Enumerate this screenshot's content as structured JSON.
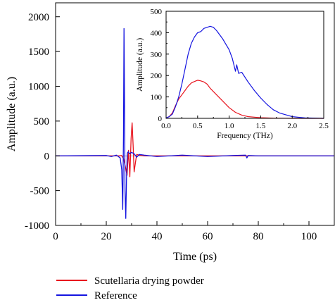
{
  "chart_data": [
    {
      "type": "line",
      "xlabel": "Time (ps)",
      "ylabel": "Amplitude (a.u.)",
      "xlim": [
        0,
        110
      ],
      "ylim": [
        -1000,
        2200
      ],
      "xticks": [
        "0",
        "20",
        "40",
        "60",
        "80",
        "100"
      ],
      "yticks": [
        "-1000",
        "-500",
        "0",
        "500",
        "1000",
        "1500",
        "2000"
      ],
      "grid": false,
      "legend_position": "bottom",
      "series": [
        {
          "name": "Scutellaria drying powder",
          "color": "#e8141e",
          "x": [
            0,
            20,
            25,
            26,
            26.8,
            27.5,
            28.2,
            28.8,
            29.3,
            29.8,
            30.2,
            30.6,
            31.0,
            31.5,
            32,
            33,
            35,
            40,
            60,
            80,
            110
          ],
          "y": [
            0,
            0,
            0,
            5,
            -40,
            -150,
            -280,
            80,
            -300,
            250,
            475,
            150,
            -230,
            -100,
            20,
            10,
            0,
            0,
            0,
            0,
            0
          ]
        },
        {
          "name": "Reference",
          "color": "#1414e0",
          "x": [
            0,
            20,
            22,
            24,
            25.5,
            26.1,
            26.5,
            26.8,
            27.0,
            27.2,
            27.4,
            27.7,
            28.0,
            28.3,
            28.7,
            29.2,
            30,
            31,
            32,
            33,
            35,
            40,
            50,
            60,
            70,
            75,
            75.5,
            76,
            80,
            90,
            110
          ],
          "y": [
            0,
            5,
            -10,
            10,
            -30,
            -200,
            -770,
            300,
            1830,
            800,
            -500,
            -900,
            -300,
            40,
            60,
            30,
            50,
            30,
            -20,
            20,
            10,
            -10,
            10,
            -10,
            5,
            10,
            -30,
            5,
            0,
            0,
            0
          ]
        }
      ]
    },
    {
      "type": "line",
      "xlabel": "Frequency (THz)",
      "ylabel": "Amplitude (a.u.)",
      "xlim": [
        0,
        2.5
      ],
      "ylim": [
        0,
        500
      ],
      "xticks": [
        "0.0",
        "0.5",
        "1.0",
        "1.5",
        "2.0",
        "2.5"
      ],
      "yticks": [
        "0",
        "100",
        "200",
        "300",
        "400",
        "500"
      ],
      "grid": false,
      "series": [
        {
          "name": "Scutellaria drying powder",
          "color": "#e8141e",
          "x": [
            0,
            0.05,
            0.1,
            0.15,
            0.2,
            0.25,
            0.3,
            0.35,
            0.4,
            0.45,
            0.5,
            0.55,
            0.6,
            0.65,
            0.7,
            0.8,
            0.9,
            1.0,
            1.1,
            1.2,
            1.3,
            1.5,
            1.7,
            2.0,
            2.5
          ],
          "y": [
            2,
            8,
            25,
            60,
            90,
            110,
            130,
            150,
            165,
            172,
            178,
            175,
            170,
            160,
            140,
            110,
            80,
            50,
            28,
            15,
            8,
            3,
            1,
            0,
            0
          ]
        },
        {
          "name": "Reference",
          "color": "#1414e0",
          "x": [
            0,
            0.05,
            0.1,
            0.15,
            0.2,
            0.25,
            0.3,
            0.35,
            0.4,
            0.45,
            0.5,
            0.55,
            0.6,
            0.65,
            0.7,
            0.75,
            0.8,
            0.9,
            1.0,
            1.05,
            1.1,
            1.12,
            1.15,
            1.2,
            1.3,
            1.4,
            1.5,
            1.6,
            1.7,
            1.8,
            2.0,
            2.2,
            2.5
          ],
          "y": [
            2,
            8,
            20,
            55,
            100,
            160,
            230,
            300,
            350,
            380,
            400,
            405,
            420,
            425,
            430,
            425,
            410,
            370,
            320,
            280,
            220,
            250,
            210,
            215,
            170,
            130,
            95,
            65,
            40,
            25,
            8,
            2,
            0
          ]
        }
      ]
    }
  ],
  "legend": {
    "items": [
      {
        "label": "Scutellaria drying powder",
        "color": "#e8141e"
      },
      {
        "label": "Reference",
        "color": "#1414e0"
      }
    ]
  }
}
